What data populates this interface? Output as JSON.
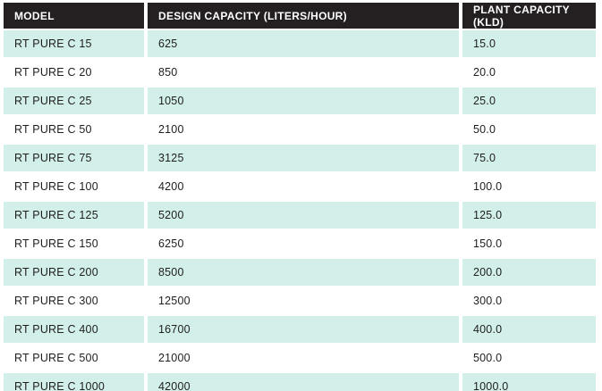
{
  "colors": {
    "header_bg": "#242021",
    "header_text": "#ffffff",
    "row_alt_bg": "#d3efe9",
    "row_bg": "#ffffff",
    "body_text": "#1e1e1e"
  },
  "table": {
    "headers": [
      "MODEL",
      "DESIGN CAPACITY (LITERS/HOUR)",
      "PLANT CAPACITY (KLD)"
    ],
    "rows": [
      {
        "model": "RT PURE C 15",
        "design_capacity": "625",
        "plant_capacity": "15.0"
      },
      {
        "model": "RT PURE C 20",
        "design_capacity": "850",
        "plant_capacity": "20.0"
      },
      {
        "model": "RT PURE C 25",
        "design_capacity": "1050",
        "plant_capacity": "25.0"
      },
      {
        "model": "RT PURE C 50",
        "design_capacity": "2100",
        "plant_capacity": "50.0"
      },
      {
        "model": "RT PURE C 75",
        "design_capacity": "3125",
        "plant_capacity": "75.0"
      },
      {
        "model": "RT PURE C 100",
        "design_capacity": "4200",
        "plant_capacity": "100.0"
      },
      {
        "model": "RT PURE C 125",
        "design_capacity": "5200",
        "plant_capacity": "125.0"
      },
      {
        "model": "RT PURE C 150",
        "design_capacity": "6250",
        "plant_capacity": "150.0"
      },
      {
        "model": "RT PURE C 200",
        "design_capacity": "8500",
        "plant_capacity": "200.0"
      },
      {
        "model": "RT PURE C 300",
        "design_capacity": "12500",
        "plant_capacity": "300.0"
      },
      {
        "model": "RT PURE C 400",
        "design_capacity": "16700",
        "plant_capacity": "400.0"
      },
      {
        "model": "RT PURE C 500",
        "design_capacity": "21000",
        "plant_capacity": "500.0"
      },
      {
        "model": "RT PURE C 1000",
        "design_capacity": "42000",
        "plant_capacity": "1000.0"
      }
    ]
  },
  "chart_data": {
    "type": "table",
    "title": "",
    "columns": [
      "MODEL",
      "DESIGN CAPACITY (LITERS/HOUR)",
      "PLANT CAPACITY (KLD)"
    ],
    "models": [
      "RT PURE C 15",
      "RT PURE C 20",
      "RT PURE C 25",
      "RT PURE C 50",
      "RT PURE C 75",
      "RT PURE C 100",
      "RT PURE C 125",
      "RT PURE C 150",
      "RT PURE C 200",
      "RT PURE C 300",
      "RT PURE C 400",
      "RT PURE C 500",
      "RT PURE C 1000"
    ],
    "design_capacity_lph": [
      625,
      850,
      1050,
      2100,
      3125,
      4200,
      5200,
      6250,
      8500,
      12500,
      16700,
      21000,
      42000
    ],
    "plant_capacity_kld": [
      15.0,
      20.0,
      25.0,
      50.0,
      75.0,
      100.0,
      125.0,
      150.0,
      200.0,
      300.0,
      400.0,
      500.0,
      1000.0
    ]
  }
}
